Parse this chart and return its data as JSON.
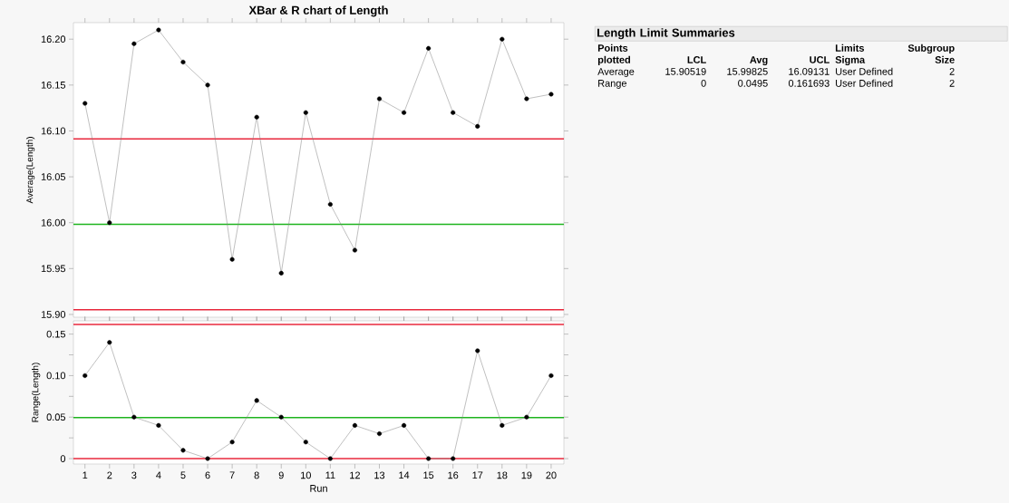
{
  "chart_data": [
    {
      "type": "line",
      "title": "XBar & R chart of Length",
      "ylabel": "Average(Length)",
      "marker": "circle",
      "line_style": "solid",
      "tick_labels": "y",
      "x": [
        1,
        2,
        3,
        4,
        5,
        6,
        7,
        8,
        9,
        10,
        11,
        12,
        13,
        14,
        15,
        16,
        17,
        18,
        19,
        20
      ],
      "series": [
        {
          "color": "#000000",
          "values": [
            16.13,
            16.0,
            16.195,
            16.21,
            16.175,
            16.15,
            15.96,
            16.115,
            15.945,
            16.12,
            16.02,
            15.97,
            16.135,
            16.12,
            16.19,
            16.12,
            16.105,
            16.2,
            16.135,
            16.14
          ]
        }
      ],
      "xlim": [
        0.53,
        20.52
      ],
      "xticks": [
        1,
        2,
        3,
        4,
        5,
        6,
        7,
        8,
        9,
        10,
        11,
        12,
        13,
        14,
        15,
        16,
        17,
        18,
        19,
        20
      ],
      "ylim": [
        15.897,
        16.218
      ],
      "yticks": [
        {
          "value": 15.9,
          "label": "15.90"
        },
        15.95,
        {
          "value": 16.0,
          "label": "16.00"
        },
        16.05,
        {
          "value": 16.1,
          "label": "16.10"
        },
        16.15,
        {
          "value": 16.2,
          "label": "16.20"
        }
      ],
      "ref_lines": [
        {
          "axis": "y",
          "value": 16.09131,
          "color": "#e8283c"
        },
        {
          "axis": "y",
          "value": 15.99825,
          "color": "#1eb41e"
        },
        {
          "axis": "y",
          "value": 15.90519,
          "color": "#e8283c"
        }
      ]
    },
    {
      "type": "line",
      "xlabel": "Run",
      "ylabel": "Range(Length)",
      "marker": "circle",
      "line_style": "solid",
      "x": [
        1,
        2,
        3,
        4,
        5,
        6,
        7,
        8,
        9,
        10,
        11,
        12,
        13,
        14,
        15,
        16,
        17,
        18,
        19,
        20
      ],
      "series": [
        {
          "color": "#000000",
          "values": [
            0.1,
            0.14,
            0.05,
            0.04,
            0.01,
            0,
            0.02,
            0.07,
            0.05,
            0.02,
            0,
            0.04,
            0.03,
            0.04,
            0,
            0,
            0.13,
            0.04,
            0.05,
            0.1
          ]
        }
      ],
      "xlim": [
        0.53,
        20.52
      ],
      "xticks": [
        1,
        2,
        3,
        4,
        5,
        6,
        7,
        8,
        9,
        10,
        11,
        12,
        13,
        14,
        15,
        16,
        17,
        18,
        19,
        20
      ],
      "ylim": [
        -0.0065,
        0.166
      ],
      "yticks": [
        0,
        {
          "value": 0.025,
          "label": null
        },
        0.05,
        {
          "value": 0.075,
          "label": null
        },
        {
          "value": 0.1,
          "label": "0.10"
        },
        {
          "value": 0.125,
          "label": null
        },
        0.15
      ],
      "ref_lines": [
        {
          "axis": "y",
          "value": 0.161693,
          "color": "#e8283c"
        },
        {
          "axis": "y",
          "value": 0.0495,
          "color": "#1eb41e"
        },
        {
          "axis": "y",
          "value": 0,
          "color": "#e8283c"
        }
      ]
    },
    {
      "type": "other",
      "title": "Length Limit Summaries",
      "annotations": [
        "Points plotted",
        "LCL",
        "Avg",
        "UCL",
        "Limits Sigma",
        "Subgroup Size",
        "Average",
        "15.90519",
        "15.99825",
        "16.09131",
        "User Defined",
        "2",
        "Range",
        "0",
        "0.0495",
        "0.161693",
        "User Defined",
        "2"
      ]
    }
  ]
}
